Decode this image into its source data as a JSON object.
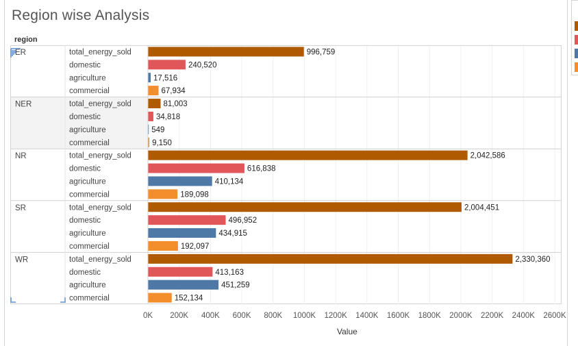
{
  "title": "Region wise Analysis",
  "row_header": "region",
  "axis_title": "Value",
  "colors": {
    "total_energy_sold": "#b05a00",
    "domestic": "#e15759",
    "agriculture": "#4e79a7",
    "commercial": "#f28e2b"
  },
  "chart_data": {
    "type": "bar",
    "orientation": "horizontal",
    "title": "Region wise Analysis",
    "xlabel": "Value",
    "ylabel": "region",
    "xlim": [
      0,
      2600000
    ],
    "x_ticks": [
      "0K",
      "200K",
      "400K",
      "600K",
      "800K",
      "1000K",
      "1200K",
      "1400K",
      "1600K",
      "1800K",
      "2000K",
      "2200K",
      "2400K",
      "2600K"
    ],
    "grid": true,
    "regions": [
      {
        "region": "ER",
        "bars": [
          {
            "measure": "total_energy_sold",
            "value": 996759,
            "label": "996,759"
          },
          {
            "measure": "domestic",
            "value": 240520,
            "label": "240,520"
          },
          {
            "measure": "agriculture",
            "value": 17516,
            "label": "17,516"
          },
          {
            "measure": "commercial",
            "value": 67934,
            "label": "67,934"
          }
        ]
      },
      {
        "region": "NER",
        "bars": [
          {
            "measure": "total_energy_sold",
            "value": 81003,
            "label": "81,003"
          },
          {
            "measure": "domestic",
            "value": 34818,
            "label": "34,818"
          },
          {
            "measure": "agriculture",
            "value": 549,
            "label": "549"
          },
          {
            "measure": "commercial",
            "value": 9150,
            "label": "9,150"
          }
        ]
      },
      {
        "region": "NR",
        "bars": [
          {
            "measure": "total_energy_sold",
            "value": 2042586,
            "label": "2,042,586"
          },
          {
            "measure": "domestic",
            "value": 616838,
            "label": "616,838"
          },
          {
            "measure": "agriculture",
            "value": 410134,
            "label": "410,134"
          },
          {
            "measure": "commercial",
            "value": 189098,
            "label": "189,098"
          }
        ]
      },
      {
        "region": "SR",
        "bars": [
          {
            "measure": "total_energy_sold",
            "value": 2004451,
            "label": "2,004,451"
          },
          {
            "measure": "domestic",
            "value": 496952,
            "label": "496,952"
          },
          {
            "measure": "agriculture",
            "value": 434915,
            "label": "434,915"
          },
          {
            "measure": "commercial",
            "value": 192097,
            "label": "192,097"
          }
        ]
      },
      {
        "region": "WR",
        "bars": [
          {
            "measure": "total_energy_sold",
            "value": 2330360,
            "label": "2,330,360"
          },
          {
            "measure": "domestic",
            "value": 413163,
            "label": "413,163"
          },
          {
            "measure": "agriculture",
            "value": 451259,
            "label": "451,259"
          },
          {
            "measure": "commercial",
            "value": 152134,
            "label": "152,134"
          }
        ]
      }
    ]
  }
}
